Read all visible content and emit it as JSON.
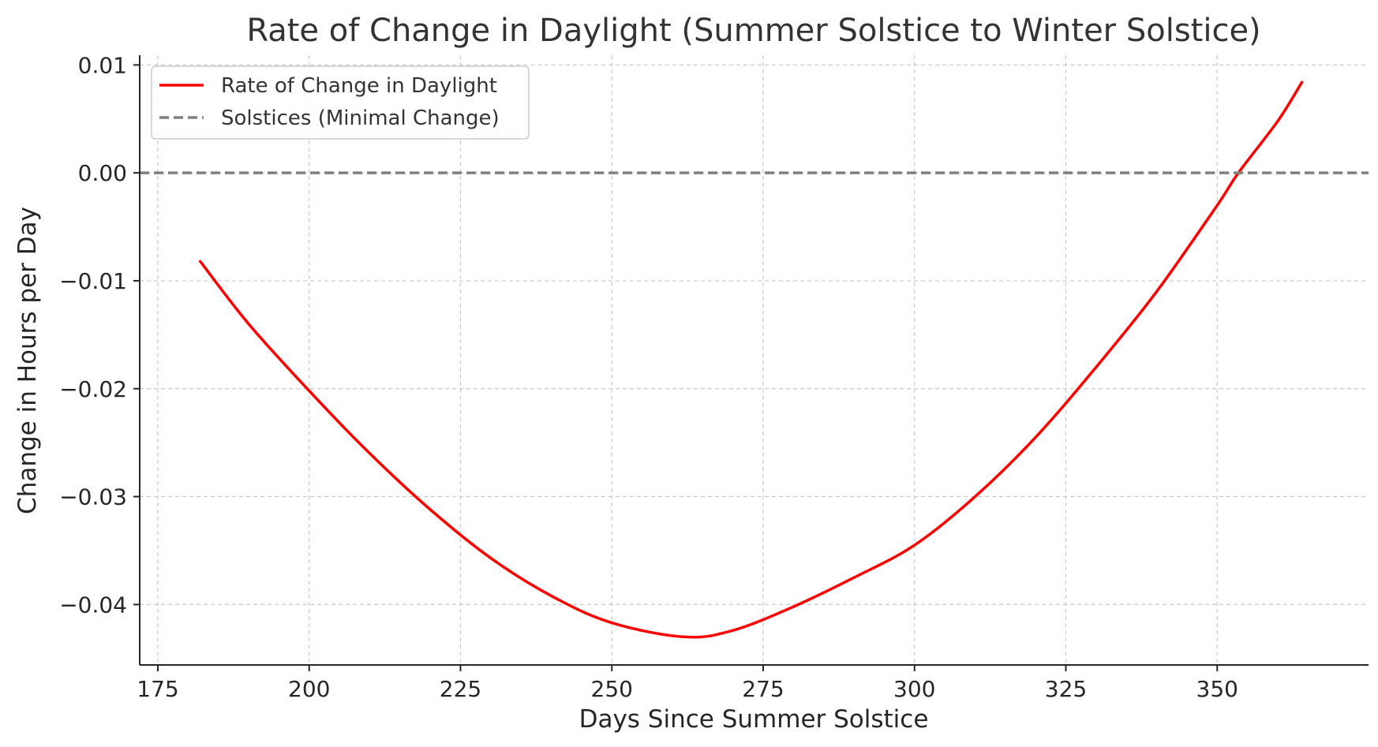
{
  "chart_data": {
    "type": "line",
    "title": "Rate of Change in Daylight (Summer Solstice to Winter Solstice)",
    "xlabel": "Days Since Summer Solstice",
    "ylabel": "Change in Hours per Day",
    "xlim": [
      172,
      375
    ],
    "ylim": [
      -0.0456,
      0.0109
    ],
    "xticks": [
      175,
      200,
      225,
      250,
      275,
      300,
      325,
      350
    ],
    "yticks": [
      -0.04,
      -0.03,
      -0.02,
      -0.01,
      0.0,
      0.01
    ],
    "xtick_labels": [
      "175",
      "200",
      "225",
      "250",
      "275",
      "300",
      "325",
      "350"
    ],
    "ytick_labels": [
      "−0.04",
      "−0.03",
      "−0.02",
      "−0.01",
      "0.00",
      "0.01"
    ],
    "grid": true,
    "legend_position": "top-left",
    "series": [
      {
        "name": "Rate of Change in Daylight",
        "color": "#ff0000",
        "style": "solid",
        "x": [
          182,
          190,
          200,
          210,
          220,
          230,
          240,
          250,
          262,
          270,
          280,
          290,
          300,
          310,
          320,
          330,
          340,
          350,
          353.5,
          360,
          364
        ],
        "y": [
          -0.0082,
          -0.014,
          -0.0202,
          -0.026,
          -0.0312,
          -0.0357,
          -0.0392,
          -0.0417,
          -0.043,
          -0.0424,
          -0.0402,
          -0.0375,
          -0.0345,
          -0.03,
          -0.0245,
          -0.018,
          -0.011,
          -0.003,
          0.0,
          0.0048,
          0.0084
        ]
      },
      {
        "name": "Solstices (Minimal Change)",
        "color": "#808080",
        "style": "dashed",
        "type": "hline",
        "y": 0.0
      }
    ]
  }
}
